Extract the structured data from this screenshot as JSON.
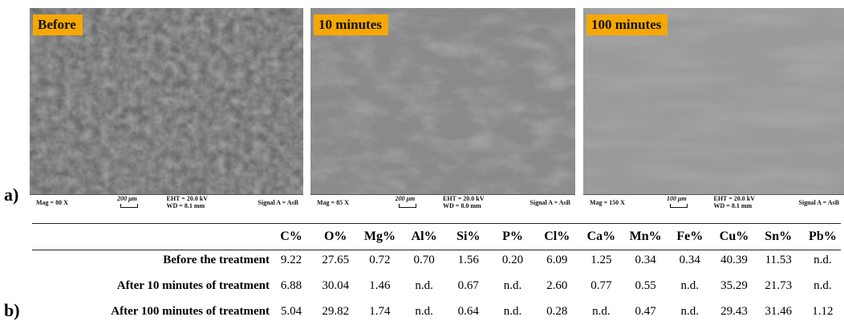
{
  "panel_a": {
    "label": "a)",
    "images": [
      {
        "title": "Before",
        "mag": "Mag = 80 X",
        "scale": "200 μm",
        "eht": "EHT = 20.0 kV",
        "wd": "WD = 8.1 mm",
        "signal": "Signal A = AsB"
      },
      {
        "title": "10 minutes",
        "mag": "Mag = 85 X",
        "scale": "200 μm",
        "eht": "EHT = 20.0 kV",
        "wd": "WD = 8.0 mm",
        "signal": "Signal A = AsB"
      },
      {
        "title": "100 minutes",
        "mag": "Mag = 150 X",
        "scale": "100 μm",
        "eht": "EHT = 20.0 kV",
        "wd": "WD = 8.1 mm",
        "signal": "Signal A = AsB"
      }
    ]
  },
  "panel_b": {
    "label": "b)",
    "table": {
      "columns": [
        "C%",
        "O%",
        "Mg%",
        "Al%",
        "Si%",
        "P%",
        "Cl%",
        "Ca%",
        "Mn%",
        "Fe%",
        "Cu%",
        "Sn%",
        "Pb%"
      ],
      "rows": [
        {
          "label": "Before the treatment",
          "cells": [
            "9.22",
            "27.65",
            "0.72",
            "0.70",
            "1.56",
            "0.20",
            "6.09",
            "1.25",
            "0.34",
            "0.34",
            "40.39",
            "11.53",
            "n.d."
          ]
        },
        {
          "label": "After 10 minutes of treatment",
          "cells": [
            "6.88",
            "30.04",
            "1.46",
            "n.d.",
            "0.67",
            "n.d.",
            "2.60",
            "0.77",
            "0.55",
            "n.d.",
            "35.29",
            "21.73",
            "n.d."
          ]
        },
        {
          "label": "After 100 minutes of treatment",
          "cells": [
            "5.04",
            "29.82",
            "1.74",
            "n.d.",
            "0.64",
            "n.d.",
            "0.28",
            "n.d.",
            "0.47",
            "n.d.",
            "29.43",
            "31.46",
            "1.12"
          ]
        }
      ]
    }
  }
}
